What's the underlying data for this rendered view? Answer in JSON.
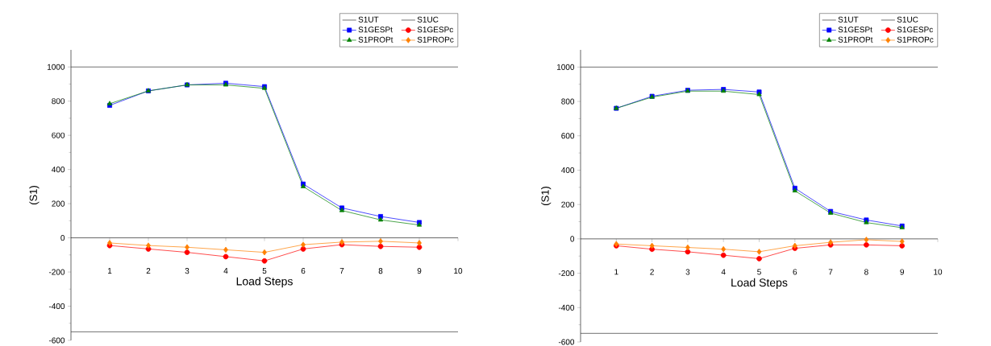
{
  "chart_data": [
    {
      "type": "line",
      "xlabel": "Load Steps",
      "ylabel": "(S1)",
      "xlim": [
        0,
        10
      ],
      "xticks": [
        1,
        2,
        3,
        4,
        5,
        6,
        7,
        8,
        9,
        10
      ],
      "ylim": [
        -600,
        1100
      ],
      "yticks": [
        -600,
        -400,
        -200,
        0,
        200,
        400,
        600,
        800,
        1000
      ],
      "legend": "top right",
      "x": [
        1,
        2,
        3,
        4,
        5,
        6,
        7,
        8,
        9
      ],
      "ref_lines": [
        {
          "axis": "y",
          "value": 1000,
          "label": "S1UT",
          "color": "#333333"
        },
        {
          "axis": "y",
          "value": -550,
          "label": "S1UC",
          "color": "#333333"
        }
      ],
      "series": [
        {
          "name": "S1GESPt",
          "color": "#0000ff",
          "marker": "square",
          "values": [
            775,
            860,
            895,
            905,
            885,
            315,
            175,
            125,
            90
          ]
        },
        {
          "name": "S1GESPc",
          "color": "#ff0000",
          "marker": "circle",
          "values": [
            -45,
            -65,
            -85,
            -110,
            -135,
            -65,
            -40,
            -50,
            -55
          ]
        },
        {
          "name": "S1PROPt",
          "color": "#008000",
          "marker": "triangle",
          "values": [
            785,
            860,
            895,
            895,
            875,
            300,
            160,
            105,
            75
          ]
        },
        {
          "name": "S1PROPc",
          "color": "#ff8000",
          "marker": "diamond",
          "values": [
            -30,
            -45,
            -55,
            -70,
            -85,
            -40,
            -25,
            -20,
            -30
          ]
        }
      ]
    },
    {
      "type": "line",
      "xlabel": "Load Steps",
      "ylabel": "(S1)",
      "xlim": [
        0,
        10
      ],
      "xticks": [
        1,
        2,
        3,
        4,
        5,
        6,
        7,
        8,
        9,
        10
      ],
      "ylim": [
        -600,
        1100
      ],
      "yticks": [
        -600,
        -400,
        -200,
        0,
        200,
        400,
        600,
        800,
        1000
      ],
      "legend": "top right",
      "x": [
        1,
        2,
        3,
        4,
        5,
        6,
        7,
        8,
        9
      ],
      "ref_lines": [
        {
          "axis": "y",
          "value": 1000,
          "label": "S1UT",
          "color": "#333333"
        },
        {
          "axis": "y",
          "value": -550,
          "label": "S1UC",
          "color": "#333333"
        }
      ],
      "series": [
        {
          "name": "S1GESPt",
          "color": "#0000ff",
          "marker": "square",
          "values": [
            760,
            830,
            865,
            870,
            855,
            295,
            160,
            110,
            75
          ]
        },
        {
          "name": "S1GESPc",
          "color": "#ff0000",
          "marker": "circle",
          "values": [
            -40,
            -60,
            -75,
            -95,
            -115,
            -55,
            -35,
            -35,
            -40
          ]
        },
        {
          "name": "S1PROPt",
          "color": "#008000",
          "marker": "triangle",
          "values": [
            760,
            825,
            860,
            860,
            840,
            280,
            150,
            95,
            65
          ]
        },
        {
          "name": "S1PROPc",
          "color": "#ff8000",
          "marker": "diamond",
          "values": [
            -30,
            -40,
            -50,
            -60,
            -75,
            -40,
            -20,
            -5,
            -15
          ]
        }
      ]
    }
  ]
}
